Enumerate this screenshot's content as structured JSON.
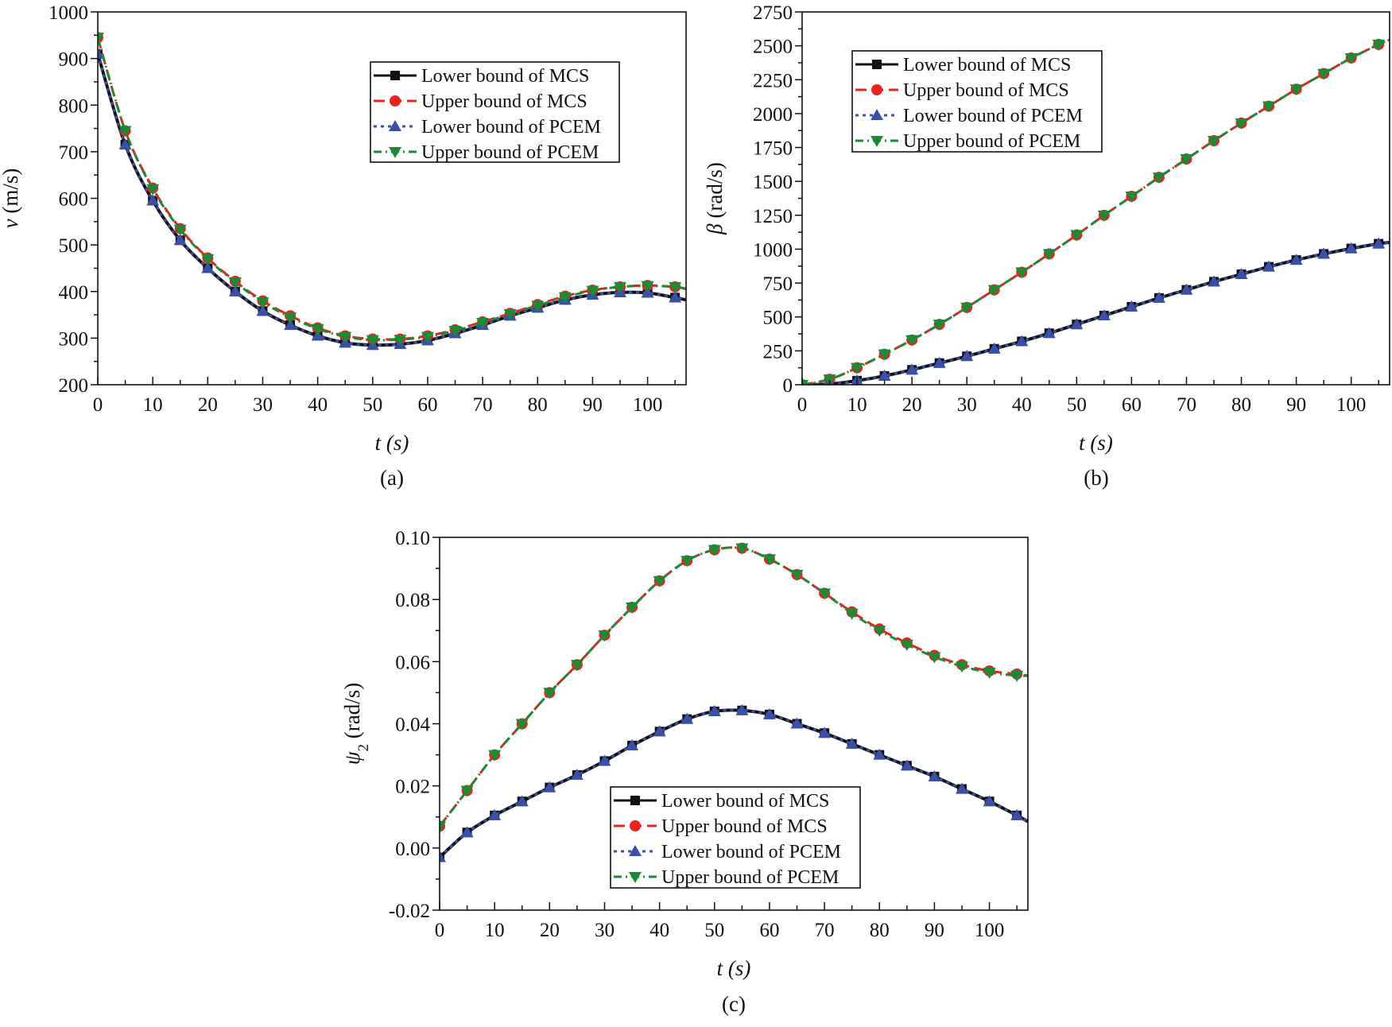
{
  "colors": {
    "lower_mcs": "#111111",
    "upper_mcs": "#e8231f",
    "lower_pcem": "#3a4fa8",
    "upper_pcem": "#1a8a35"
  },
  "legend": [
    "Lower bound of MCS",
    "Upper bound of MCS",
    "Lower bound of PCEM",
    "Upper bound of PCEM"
  ],
  "chart_data": [
    {
      "type": "line",
      "panel": "(a)",
      "xlabel": "t (s)",
      "ylabel_symbol": "v",
      "ylabel_unit": " (m/s)",
      "ylabel_sub": "",
      "xlim": [
        0,
        107
      ],
      "ylim": [
        200,
        1000
      ],
      "xticks": [
        0,
        10,
        20,
        30,
        40,
        50,
        60,
        70,
        80,
        90,
        100
      ],
      "yticks": [
        200,
        300,
        400,
        500,
        600,
        700,
        800,
        900,
        1000
      ],
      "ytick_labels": [
        "200",
        "300",
        "400",
        "500",
        "600",
        "700",
        "800",
        "900",
        "1000"
      ],
      "legend_placement": "top-right",
      "x": [
        0,
        5,
        10,
        15,
        20,
        25,
        30,
        35,
        40,
        45,
        50,
        55,
        60,
        65,
        70,
        75,
        80,
        85,
        90,
        95,
        100,
        105,
        107
      ],
      "series": [
        {
          "name": "Lower bound of MCS",
          "values": [
            910,
            715,
            595,
            510,
            450,
            400,
            358,
            328,
            305,
            290,
            285,
            287,
            295,
            310,
            328,
            348,
            365,
            382,
            393,
            398,
            397,
            387,
            382
          ]
        },
        {
          "name": "Upper bound of MCS",
          "values": [
            945,
            745,
            622,
            535,
            472,
            422,
            380,
            348,
            322,
            305,
            298,
            298,
            305,
            318,
            335,
            353,
            372,
            390,
            403,
            410,
            413,
            410,
            405
          ]
        },
        {
          "name": "Lower bound of PCEM",
          "values": [
            910,
            715,
            595,
            510,
            450,
            400,
            358,
            328,
            305,
            290,
            285,
            287,
            295,
            310,
            328,
            348,
            365,
            382,
            393,
            398,
            397,
            387,
            382
          ]
        },
        {
          "name": "Upper bound of PCEM",
          "values": [
            945,
            745,
            620,
            533,
            470,
            420,
            377,
            345,
            320,
            303,
            296,
            297,
            303,
            316,
            333,
            352,
            370,
            388,
            402,
            410,
            412,
            410,
            406
          ]
        }
      ]
    },
    {
      "type": "line",
      "panel": "(b)",
      "xlabel": "t (s)",
      "ylabel_symbol": "β",
      "ylabel_unit": " (rad/s)",
      "ylabel_sub": "",
      "xlim": [
        0,
        107
      ],
      "ylim": [
        0,
        2750
      ],
      "xticks": [
        0,
        10,
        20,
        30,
        40,
        50,
        60,
        70,
        80,
        90,
        100
      ],
      "yticks": [
        0,
        250,
        500,
        750,
        1000,
        1250,
        1500,
        1750,
        2000,
        2250,
        2500,
        2750
      ],
      "ytick_labels": [
        "0",
        "250",
        "500",
        "750",
        "1000",
        "1250",
        "1500",
        "1750",
        "2000",
        "2250",
        "2500",
        "2750"
      ],
      "legend_placement": "top-left",
      "x": [
        0,
        5,
        10,
        15,
        20,
        25,
        30,
        35,
        40,
        45,
        50,
        55,
        60,
        65,
        70,
        75,
        80,
        85,
        90,
        95,
        100,
        105,
        107
      ],
      "series": [
        {
          "name": "Lower bound of MCS",
          "values": [
            0,
            5,
            30,
            65,
            110,
            160,
            210,
            265,
            320,
            380,
            445,
            510,
            575,
            640,
            700,
            760,
            815,
            870,
            920,
            965,
            1005,
            1040,
            1050
          ]
        },
        {
          "name": "Upper bound of MCS",
          "values": [
            0,
            40,
            125,
            225,
            330,
            445,
            570,
            700,
            830,
            965,
            1105,
            1250,
            1390,
            1530,
            1665,
            1800,
            1930,
            2055,
            2180,
            2295,
            2410,
            2510,
            2545
          ]
        },
        {
          "name": "Lower bound of PCEM",
          "values": [
            0,
            5,
            30,
            65,
            110,
            160,
            210,
            265,
            320,
            380,
            445,
            510,
            575,
            640,
            700,
            760,
            815,
            870,
            920,
            965,
            1005,
            1040,
            1050
          ]
        },
        {
          "name": "Upper bound of PCEM",
          "values": [
            0,
            40,
            125,
            225,
            330,
            445,
            570,
            700,
            830,
            965,
            1105,
            1250,
            1390,
            1530,
            1665,
            1800,
            1930,
            2055,
            2180,
            2295,
            2410,
            2510,
            2545
          ]
        }
      ]
    },
    {
      "type": "line",
      "panel": "(c)",
      "xlabel": "t (s)",
      "ylabel_symbol": "ψ",
      "ylabel_unit": " (rad/s)",
      "ylabel_sub": "2",
      "xlim": [
        0,
        107
      ],
      "ylim": [
        -0.02,
        0.1
      ],
      "xticks": [
        0,
        10,
        20,
        30,
        40,
        50,
        60,
        70,
        80,
        90,
        100
      ],
      "yticks": [
        -0.02,
        0,
        0.02,
        0.04,
        0.06,
        0.08,
        0.1
      ],
      "ytick_labels": [
        "-0.02",
        "0.00",
        "0.02",
        "0.04",
        "0.06",
        "0.08",
        "0.10"
      ],
      "legend_placement": "bottom-center",
      "x": [
        0,
        5,
        10,
        15,
        20,
        25,
        30,
        35,
        40,
        45,
        50,
        55,
        60,
        65,
        70,
        75,
        80,
        85,
        90,
        95,
        100,
        105,
        107
      ],
      "series": [
        {
          "name": "Lower bound of MCS",
          "values": [
            -0.003,
            0.005,
            0.0105,
            0.015,
            0.0195,
            0.0235,
            0.028,
            0.033,
            0.0375,
            0.0415,
            0.044,
            0.0443,
            0.043,
            0.04,
            0.037,
            0.0335,
            0.03,
            0.0265,
            0.023,
            0.019,
            0.015,
            0.0105,
            0.0085
          ]
        },
        {
          "name": "Upper bound of MCS",
          "values": [
            0.007,
            0.0185,
            0.03,
            0.04,
            0.05,
            0.059,
            0.0685,
            0.0775,
            0.086,
            0.0925,
            0.096,
            0.0965,
            0.093,
            0.088,
            0.082,
            0.076,
            0.0705,
            0.066,
            0.062,
            0.059,
            0.057,
            0.056,
            0.0555
          ]
        },
        {
          "name": "Lower bound of PCEM",
          "values": [
            -0.003,
            0.005,
            0.0105,
            0.015,
            0.0195,
            0.0235,
            0.028,
            0.033,
            0.0375,
            0.0415,
            0.044,
            0.0443,
            0.043,
            0.04,
            0.037,
            0.0335,
            0.03,
            0.0265,
            0.023,
            0.019,
            0.015,
            0.0105,
            0.0085
          ]
        },
        {
          "name": "Upper bound of PCEM",
          "values": [
            0.007,
            0.0185,
            0.03,
            0.04,
            0.05,
            0.059,
            0.0685,
            0.0775,
            0.086,
            0.0925,
            0.096,
            0.0965,
            0.093,
            0.088,
            0.082,
            0.0755,
            0.07,
            0.0655,
            0.0615,
            0.0585,
            0.0565,
            0.0555,
            0.0555
          ]
        }
      ]
    }
  ]
}
